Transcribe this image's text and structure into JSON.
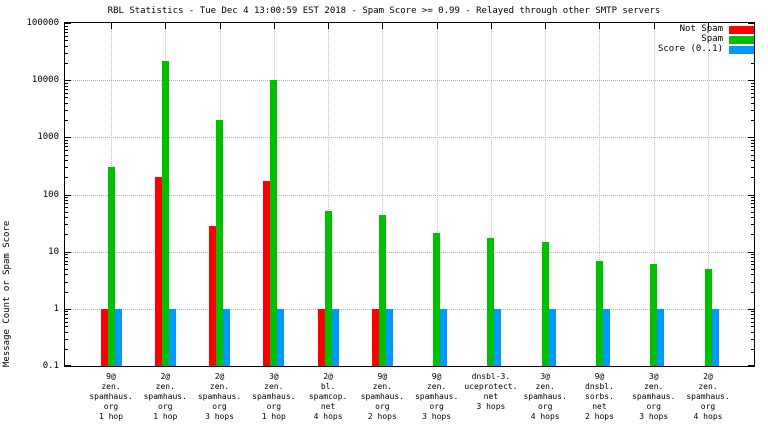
{
  "chart_data": {
    "type": "bar",
    "title": "RBL Statistics - Tue Dec 4 13:00:59 EST 2018 - Spam Score >= 0.99 - Relayed through other SMTP servers",
    "ylabel": "Message Count or Spam Score",
    "y_scale": "log",
    "ylim": [
      0.1,
      100000
    ],
    "y_ticks": [
      0.1,
      1,
      10,
      100,
      1000,
      10000,
      100000
    ],
    "grid": true,
    "legend_position": "top-right",
    "categories": [
      "9@\nzen.\nspamhaus.\norg\n1 hop",
      "2@\nzen.\nspamhaus.\norg\n1 hop",
      "2@\nzen.\nspamhaus.\norg\n3 hops",
      "3@\nzen.\nspamhaus.\norg\n1 hop",
      "2@\nbl.\nspamcop.\nnet\n4 hops",
      "9@\nzen.\nspamhaus.\norg\n2 hops",
      "9@\nzen.\nspamhaus.\norg\n3 hops",
      "dnsbl-3.\nuceprotect.\nnet\n3 hops",
      "3@\nzen.\nspamhaus.\norg\n4 hops",
      "9@\ndnsbl.\nsorbs.\nnet\n2 hops",
      "3@\nzen.\nspamhaus.\norg\n3 hops",
      "2@\nzen.\nspamhaus.\norg\n4 hops"
    ],
    "series": [
      {
        "name": "Not Spam",
        "color": "#ff0000",
        "values": [
          1,
          200,
          28,
          170,
          1,
          1,
          null,
          null,
          null,
          null,
          null,
          null
        ]
      },
      {
        "name": "Spam",
        "color": "#00c000",
        "values": [
          300,
          22000,
          2000,
          10000,
          52,
          44,
          21,
          17,
          15,
          7,
          6,
          5
        ]
      },
      {
        "name": "Score (0..1)",
        "color": "#0099ff",
        "values": [
          1,
          1,
          1,
          1,
          1,
          1,
          1,
          1,
          1,
          1,
          1,
          1
        ]
      }
    ]
  }
}
